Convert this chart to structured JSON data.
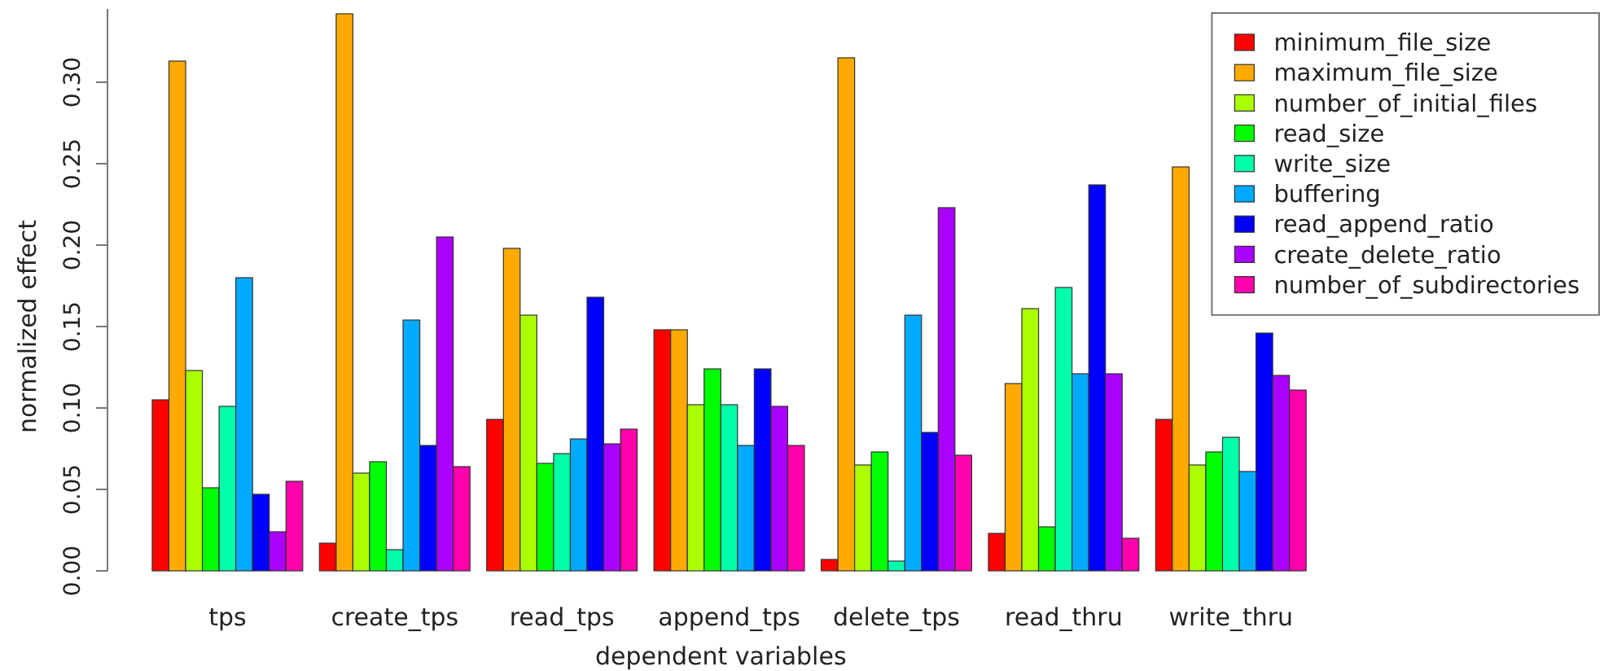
{
  "chart_data": {
    "type": "bar",
    "xlabel": "dependent variables",
    "ylabel": "normalized effect",
    "categories": [
      "tps",
      "create_tps",
      "read_tps",
      "append_tps",
      "delete_tps",
      "read_thru",
      "write_thru"
    ],
    "ylim": [
      0,
      0.345
    ],
    "yticks": [
      {
        "value": 0,
        "label": "0.00"
      },
      {
        "value": 0.05,
        "label": "0.05"
      },
      {
        "value": 0.1,
        "label": "0.10"
      },
      {
        "value": 0.15,
        "label": "0.15"
      },
      {
        "value": 0.2,
        "label": "0.20"
      },
      {
        "value": 0.25,
        "label": "0.25"
      },
      {
        "value": 0.3,
        "label": "0.30"
      }
    ],
    "grid": false,
    "legend": "top right",
    "series": [
      {
        "name": "minimum_file_size",
        "color": "#ff0000",
        "values": [
          0.105,
          0.017,
          0.093,
          0.148,
          0.007,
          0.023,
          0.093
        ]
      },
      {
        "name": "maximum_file_size",
        "color": "#ffaa00",
        "values": [
          0.313,
          0.342,
          0.198,
          0.148,
          0.315,
          0.115,
          0.248
        ]
      },
      {
        "name": "number_of_initial_files",
        "color": "#aaff00",
        "values": [
          0.123,
          0.06,
          0.157,
          0.102,
          0.065,
          0.161,
          0.065
        ]
      },
      {
        "name": "read_size",
        "color": "#00ff00",
        "values": [
          0.051,
          0.067,
          0.066,
          0.124,
          0.073,
          0.027,
          0.073
        ]
      },
      {
        "name": "write_size",
        "color": "#00ffaa",
        "values": [
          0.101,
          0.013,
          0.072,
          0.102,
          0.006,
          0.174,
          0.082
        ]
      },
      {
        "name": "buffering",
        "color": "#00aaff",
        "values": [
          0.18,
          0.154,
          0.081,
          0.077,
          0.157,
          0.121,
          0.061
        ]
      },
      {
        "name": "read_append_ratio",
        "color": "#0000ff",
        "values": [
          0.047,
          0.077,
          0.168,
          0.124,
          0.085,
          0.237,
          0.146
        ]
      },
      {
        "name": "create_delete_ratio",
        "color": "#aa00ff",
        "values": [
          0.024,
          0.205,
          0.078,
          0.101,
          0.223,
          0.121,
          0.12
        ]
      },
      {
        "name": "number_of_subdirectories",
        "color": "#ff00aa",
        "values": [
          0.055,
          0.064,
          0.087,
          0.077,
          0.071,
          0.02,
          0.111
        ]
      }
    ]
  }
}
